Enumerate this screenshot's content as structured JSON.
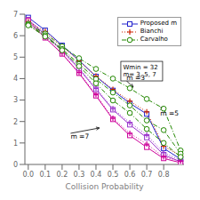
{
  "chart_data": {
    "type": "line",
    "xlabel": "Collision Probability",
    "x": [
      0.0,
      0.1,
      0.2,
      0.3,
      0.4,
      0.5,
      0.6,
      0.7,
      0.8,
      0.9
    ],
    "xlim": [
      -0.02,
      0.92
    ],
    "ylim": [
      0,
      7
    ],
    "xticks": [
      {
        "value": 0,
        "label": "0.0"
      },
      0.1,
      0.2,
      0.3,
      0.4,
      0.5,
      0.6,
      0.7,
      0.8
    ],
    "yticks": [
      0,
      1,
      2,
      3,
      4,
      5,
      6,
      7
    ],
    "grid": false,
    "legend": "upper right",
    "series": [
      {
        "name": "Proposed m",
        "color": "#2222cc",
        "marker": "square",
        "line_style": "solid",
        "values": [
          6.85,
          6.25,
          5.55,
          4.85,
          4.1,
          3.45,
          2.85,
          2.35,
          0.75,
          0.25
        ]
      },
      {
        "name": "Proposed m",
        "color": "#9933cc",
        "marker": "square",
        "line_style": "solid",
        "values": [
          6.75,
          6.05,
          5.3,
          4.45,
          3.5,
          2.55,
          1.85,
          1.25,
          0.45,
          0.12
        ]
      },
      {
        "name": "Proposed m",
        "color": "#cc0099",
        "marker": "square",
        "line_style": "solid",
        "values": [
          6.7,
          5.9,
          5.15,
          4.25,
          3.2,
          2.1,
          1.35,
          0.8,
          0.28,
          0.08
        ]
      },
      {
        "name": "Bianchi",
        "color": "#cc2200",
        "marker": "plus",
        "line_style": "dotted",
        "values": [
          6.65,
          6.2,
          5.5,
          4.82,
          4.12,
          3.5,
          2.95,
          2.45,
          0.85,
          0.4
        ]
      },
      {
        "name": "Bianchi",
        "color": "#9933cc",
        "marker": "plus",
        "line_style": "dotted",
        "values": [
          6.6,
          6.05,
          5.32,
          4.5,
          3.55,
          2.6,
          1.95,
          1.38,
          0.55,
          0.2
        ]
      },
      {
        "name": "Bianchi",
        "color": "#cc0099",
        "marker": "plus",
        "line_style": "dotted",
        "values": [
          6.55,
          5.92,
          5.18,
          4.28,
          3.25,
          2.15,
          1.45,
          0.95,
          0.35,
          0.15
        ]
      },
      {
        "name": "Carvalho",
        "color": "#228800",
        "marker": "circle",
        "line_style": "dashdot",
        "values": [
          6.55,
          6.1,
          5.5,
          4.95,
          4.45,
          4.0,
          3.55,
          3.05,
          2.6,
          0.65
        ]
      },
      {
        "name": "Carvalho",
        "color": "#228800",
        "marker": "circle",
        "line_style": "dashdot",
        "values": [
          6.5,
          6.02,
          5.38,
          4.68,
          3.98,
          3.35,
          2.75,
          2.05,
          1.6,
          0.5
        ]
      },
      {
        "name": "Carvalho",
        "color": "#228800",
        "marker": "circle",
        "line_style": "dashdot",
        "values": [
          6.48,
          5.96,
          5.32,
          4.58,
          3.78,
          2.98,
          2.4,
          1.65,
          1.0,
          0.35
        ]
      }
    ],
    "annotations": [
      {
        "text": "Wmin = 32\nm= 3, 5, 7",
        "x": 0.56,
        "y": 4.7
      },
      {
        "text": "m =3",
        "x": 0.58,
        "y": 3.9,
        "arrow_x": 0.62,
        "arrow_y": 3.6
      },
      {
        "text": "m =5",
        "x": 0.78,
        "y": 2.55,
        "arrow_x": 0.8,
        "arrow_y": 2.7
      },
      {
        "text": "m =7",
        "x": 0.25,
        "y": 1.45,
        "arrow_x": 0.42,
        "arrow_y": 1.7
      }
    ]
  }
}
